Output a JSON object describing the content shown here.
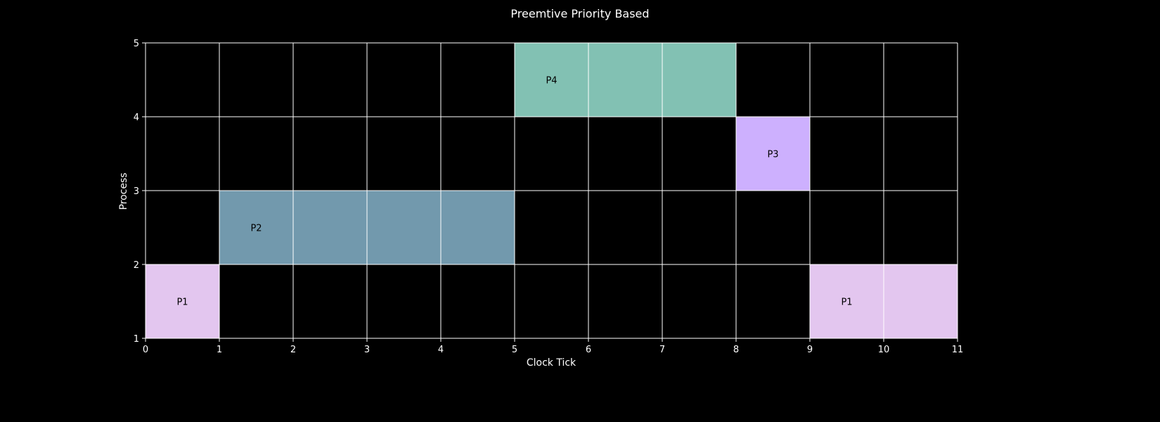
{
  "chart_data": {
    "type": "gantt",
    "title": "Preemtive Priority Based",
    "xlabel": "Clock Tick",
    "ylabel": "Process",
    "xlim": [
      0,
      11
    ],
    "ylim": [
      1,
      5
    ],
    "xticks": [
      "0",
      "1",
      "2",
      "3",
      "4",
      "5",
      "6",
      "7",
      "8",
      "9",
      "10",
      "11"
    ],
    "yticks": [
      "1",
      "2",
      "3",
      "4",
      "5"
    ],
    "grid": true,
    "background": "#000000",
    "grid_color": "#ffffff",
    "bars": [
      {
        "label": "P1",
        "start": 0,
        "end": 1,
        "y_low": 1,
        "y_high": 2,
        "color": "#e3c6ef"
      },
      {
        "label": "P2",
        "start": 1,
        "end": 5,
        "y_low": 2,
        "y_high": 3,
        "color": "#7299ad"
      },
      {
        "label": "P4",
        "start": 5,
        "end": 8,
        "y_low": 4,
        "y_high": 5,
        "color": "#82c1b3"
      },
      {
        "label": "P3",
        "start": 8,
        "end": 9,
        "y_low": 3,
        "y_high": 4,
        "color": "#cdb0fe"
      },
      {
        "label": "P1",
        "start": 9,
        "end": 11,
        "y_low": 1,
        "y_high": 2,
        "color": "#e3c6ef"
      }
    ]
  }
}
